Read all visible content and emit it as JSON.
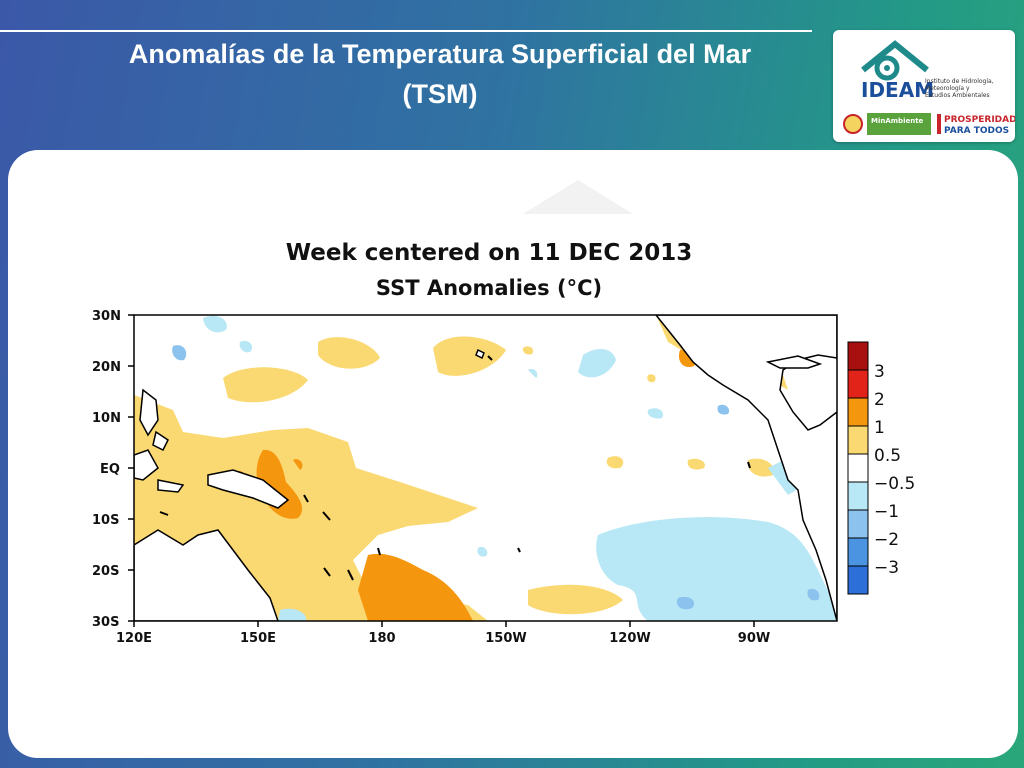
{
  "slide": {
    "title_line1": "Anomalías de la Temperatura Superficial del Mar",
    "title_line2": "(TSM)"
  },
  "logo": {
    "name": "IDEAM",
    "subtitle_lines": [
      "Instituto de Hidrología,",
      "Meteorología y",
      "Estudios Ambientales"
    ],
    "ministry": "MinAmbiente",
    "slogan_line1": "PROSPERIDAD",
    "slogan_line2": "PARA TODOS",
    "colors": {
      "teal": "#1f8a8a",
      "blue": "#1b4f9c",
      "green": "#5aa33c",
      "red": "#c8242b"
    }
  },
  "chart_data": {
    "type": "heatmap",
    "title_line1": "Week centered on 11 DEC 2013",
    "title_line2": "SST Anomalies (°C)",
    "x_ticks": [
      "120E",
      "150E",
      "180",
      "150W",
      "120W",
      "90W"
    ],
    "y_ticks": [
      "30N",
      "20N",
      "10N",
      "EQ",
      "10S",
      "20S",
      "30S"
    ],
    "lon_range": [
      120,
      290
    ],
    "lat_range": [
      -30,
      30
    ],
    "colorbar": {
      "levels": [
        "3",
        "2",
        "1",
        "0.5",
        "−0.5",
        "−1",
        "−2",
        "−3"
      ],
      "colors": [
        "#a80f0f",
        "#e2231a",
        "#f5960f",
        "#fbd972",
        "#ffffff",
        "#b8e7f5",
        "#8cc2ee",
        "#4a94e2",
        "#2c6fd9"
      ]
    }
  }
}
